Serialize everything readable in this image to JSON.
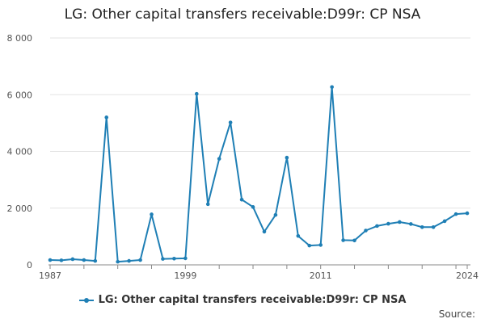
{
  "chart_data": {
    "type": "line",
    "title": "LG: Other capital transfers receivable:D99r: CP NSA",
    "xlabel": "",
    "ylabel": "",
    "x_range": [
      1987,
      2024
    ],
    "xticks": [
      1987,
      1999,
      2011,
      2024
    ],
    "xtick_labels": [
      "1987",
      "1999",
      "2011",
      "2024"
    ],
    "ylim": [
      0,
      8000
    ],
    "yticks": [
      0,
      2000,
      4000,
      6000,
      8000
    ],
    "ytick_labels": [
      "0",
      "2 000",
      "4 000",
      "6 000",
      "8 000"
    ],
    "grid": "horizontal",
    "legend_position": "bottom-center",
    "color": "#1f7fb5",
    "series": [
      {
        "name": "LG: Other capital transfers receivable:D99r: CP NSA",
        "x": [
          1987,
          1988,
          1989,
          1990,
          1991,
          1992,
          1993,
          1994,
          1995,
          1996,
          1997,
          1998,
          1999,
          2000,
          2001,
          2002,
          2003,
          2004,
          2005,
          2006,
          2007,
          2008,
          2009,
          2010,
          2011,
          2012,
          2013,
          2014,
          2015,
          2016,
          2017,
          2018,
          2019,
          2020,
          2021,
          2022,
          2023,
          2024
        ],
        "values": [
          170,
          160,
          200,
          170,
          140,
          5200,
          110,
          140,
          170,
          1780,
          210,
          220,
          230,
          6030,
          2140,
          3740,
          5020,
          2300,
          2040,
          1170,
          1760,
          3780,
          1020,
          680,
          700,
          6270,
          870,
          860,
          1210,
          1370,
          1450,
          1510,
          1440,
          1330,
          1330,
          1540,
          1790,
          1820
        ]
      }
    ]
  },
  "source_label": "Source:"
}
